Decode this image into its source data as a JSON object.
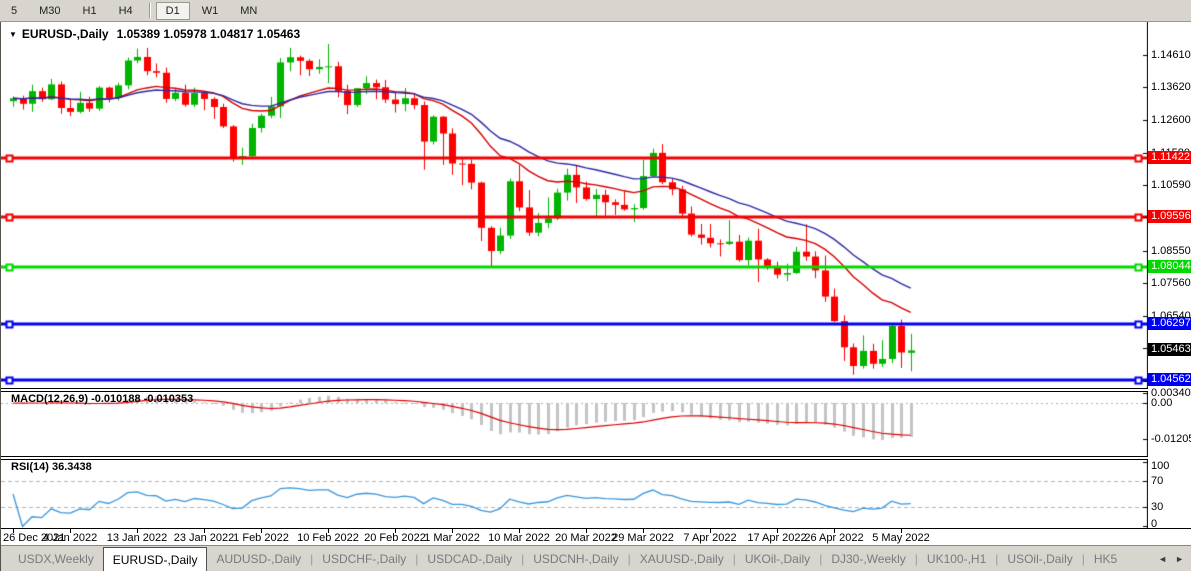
{
  "toolbar": {
    "timeframes": [
      {
        "label": "5",
        "active": false,
        "sep_before": false
      },
      {
        "label": "M30",
        "active": false,
        "sep_before": false
      },
      {
        "label": "H1",
        "active": false,
        "sep_before": false
      },
      {
        "label": "H4",
        "active": false,
        "sep_before": false
      },
      {
        "label": "D1",
        "active": true,
        "sep_before": true
      },
      {
        "label": "W1",
        "active": false,
        "sep_before": false
      },
      {
        "label": "MN",
        "active": false,
        "sep_before": false
      }
    ]
  },
  "chart": {
    "title_symbol": "EURUSD-,Daily",
    "title_ohlc": "1.05389 1.05978 1.04817 1.05463",
    "dropdown_icon": "▼"
  },
  "chart_data": {
    "type": "candlestick",
    "symbol": "EURUSD-,Daily",
    "price_axis_ticks": [
      "1.14610",
      "1.13620",
      "1.12600",
      "1.11580",
      "1.10590",
      "1.09600",
      "1.08550",
      "1.07560",
      "1.06540",
      "1.05550",
      "1.04530"
    ],
    "price_range": {
      "max": 1.1557,
      "min": 1.043
    },
    "hlines": [
      {
        "price": 1.11422,
        "label": "1.11422",
        "color": "#f40000"
      },
      {
        "price": 1.09596,
        "label": "1.09596",
        "color": "#f40000"
      },
      {
        "price": 1.08044,
        "label": "1.08044",
        "color": "#00d800"
      },
      {
        "price": 1.06297,
        "label": "1.06297",
        "color": "#0000f0"
      },
      {
        "price": 1.04562,
        "label": "1.04562",
        "color": "#0000f0"
      }
    ],
    "current_price": {
      "label": "1.05463",
      "value": 1.05463,
      "badge_color": "#000000"
    },
    "colors": {
      "candle_up": "#00b400",
      "candle_down": "#fd0000",
      "ma_fast": "#d40000",
      "ma_slow": "#2a2aa8",
      "macd_hist": "#c4c4c4",
      "macd_signal": "#e00000",
      "rsi_line": "#3a96dd",
      "grid_dash": "#b4b4b4"
    },
    "moving_averages": [
      {
        "period": 18,
        "color_key": "ma_fast"
      },
      {
        "period": 28,
        "color_key": "ma_slow"
      }
    ],
    "ohlc": [
      [
        1.1318,
        1.1333,
        1.1301,
        1.1327
      ],
      [
        1.1327,
        1.1335,
        1.1292,
        1.131
      ],
      [
        1.131,
        1.1369,
        1.1285,
        1.1349
      ],
      [
        1.1349,
        1.136,
        1.1316,
        1.1324
      ],
      [
        1.1324,
        1.1387,
        1.1321,
        1.137
      ],
      [
        1.137,
        1.1379,
        1.1279,
        1.1297
      ],
      [
        1.1297,
        1.1323,
        1.1272,
        1.1285
      ],
      [
        1.1285,
        1.1347,
        1.128,
        1.1313
      ],
      [
        1.1313,
        1.1332,
        1.1285,
        1.1295
      ],
      [
        1.1295,
        1.1365,
        1.1288,
        1.136
      ],
      [
        1.136,
        1.1363,
        1.1314,
        1.1328
      ],
      [
        1.1328,
        1.1375,
        1.132,
        1.1367
      ],
      [
        1.1367,
        1.1453,
        1.1355,
        1.1444
      ],
      [
        1.1444,
        1.1481,
        1.1435,
        1.1455
      ],
      [
        1.1455,
        1.1483,
        1.1398,
        1.1411
      ],
      [
        1.1411,
        1.1435,
        1.1392,
        1.1406
      ],
      [
        1.1406,
        1.1422,
        1.1313,
        1.1325
      ],
      [
        1.1325,
        1.1358,
        1.1318,
        1.1344
      ],
      [
        1.1344,
        1.1369,
        1.1301,
        1.1307
      ],
      [
        1.1307,
        1.136,
        1.13,
        1.1343
      ],
      [
        1.1343,
        1.1344,
        1.129,
        1.1325
      ],
      [
        1.1325,
        1.133,
        1.1263,
        1.13
      ],
      [
        1.13,
        1.131,
        1.1235,
        1.124
      ],
      [
        1.124,
        1.1244,
        1.1131,
        1.1144
      ],
      [
        1.1144,
        1.1174,
        1.1121,
        1.1148
      ],
      [
        1.1148,
        1.1248,
        1.114,
        1.1235
      ],
      [
        1.1235,
        1.1279,
        1.1221,
        1.1273
      ],
      [
        1.1273,
        1.1331,
        1.1265,
        1.1302
      ],
      [
        1.1302,
        1.1452,
        1.1266,
        1.1438
      ],
      [
        1.1438,
        1.1483,
        1.1411,
        1.1454
      ],
      [
        1.1454,
        1.1459,
        1.1398,
        1.1443
      ],
      [
        1.1443,
        1.1448,
        1.1396,
        1.1417
      ],
      [
        1.1417,
        1.1448,
        1.1403,
        1.1424
      ],
      [
        1.1424,
        1.1495,
        1.1374,
        1.1426
      ],
      [
        1.1426,
        1.144,
        1.133,
        1.135
      ],
      [
        1.135,
        1.1369,
        1.1278,
        1.1306
      ],
      [
        1.1306,
        1.1359,
        1.13,
        1.1358
      ],
      [
        1.1358,
        1.1395,
        1.134,
        1.1374
      ],
      [
        1.1374,
        1.1385,
        1.1324,
        1.1361
      ],
      [
        1.1361,
        1.1384,
        1.1312,
        1.1323
      ],
      [
        1.1323,
        1.1348,
        1.1283,
        1.1309
      ],
      [
        1.1309,
        1.1359,
        1.1287,
        1.1327
      ],
      [
        1.1327,
        1.1343,
        1.1293,
        1.1306
      ],
      [
        1.1306,
        1.1317,
        1.1106,
        1.1193
      ],
      [
        1.1193,
        1.1274,
        1.1184,
        1.127
      ],
      [
        1.127,
        1.1272,
        1.1121,
        1.1218
      ],
      [
        1.1218,
        1.1234,
        1.109,
        1.1125
      ],
      [
        1.1125,
        1.1145,
        1.1058,
        1.1124
      ],
      [
        1.1124,
        1.1138,
        1.1045,
        1.1066
      ],
      [
        1.1066,
        1.1069,
        1.0885,
        1.0926
      ],
      [
        1.0926,
        1.0931,
        1.0806,
        1.0854
      ],
      [
        1.0854,
        1.0926,
        1.0845,
        1.0902
      ],
      [
        1.0902,
        1.1078,
        1.0891,
        1.107
      ],
      [
        1.107,
        1.1121,
        1.0977,
        1.0989
      ],
      [
        1.0989,
        1.1043,
        1.0901,
        1.0911
      ],
      [
        1.0911,
        1.0972,
        1.09,
        1.0941
      ],
      [
        1.0941,
        1.102,
        1.0925,
        1.0955
      ],
      [
        1.0955,
        1.1047,
        1.095,
        1.1035
      ],
      [
        1.1035,
        1.1109,
        1.101,
        1.109
      ],
      [
        1.109,
        1.1119,
        1.1003,
        1.1051
      ],
      [
        1.1051,
        1.1069,
        1.101,
        1.1015
      ],
      [
        1.1015,
        1.1046,
        1.0962,
        1.1028
      ],
      [
        1.1028,
        1.1044,
        1.0963,
        1.1005
      ],
      [
        1.1005,
        1.1014,
        1.0966,
        1.0997
      ],
      [
        1.0997,
        1.1039,
        1.0979,
        1.0983
      ],
      [
        1.0983,
        1.0999,
        1.0944,
        1.0987
      ],
      [
        1.0987,
        1.1137,
        1.0982,
        1.1086
      ],
      [
        1.1086,
        1.1171,
        1.1084,
        1.1158
      ],
      [
        1.1158,
        1.1185,
        1.1061,
        1.1067
      ],
      [
        1.1067,
        1.1077,
        1.1027,
        1.1045
      ],
      [
        1.1045,
        1.1056,
        1.096,
        1.097
      ],
      [
        1.097,
        1.0992,
        1.0899,
        1.0905
      ],
      [
        1.0905,
        1.0938,
        1.0874,
        1.0895
      ],
      [
        1.0895,
        1.0938,
        1.0865,
        1.0878
      ],
      [
        1.0878,
        1.089,
        1.0837,
        1.0876
      ],
      [
        1.0876,
        1.095,
        1.0872,
        1.0883
      ],
      [
        1.0883,
        1.0904,
        1.0821,
        1.0826
      ],
      [
        1.0826,
        1.0896,
        1.0809,
        1.0886
      ],
      [
        1.0886,
        1.0923,
        1.0758,
        1.0828
      ],
      [
        1.0828,
        1.0832,
        1.0796,
        1.0808
      ],
      [
        1.0808,
        1.0821,
        1.0769,
        1.0781
      ],
      [
        1.0781,
        1.0815,
        1.0761,
        1.0786
      ],
      [
        1.0786,
        1.0867,
        1.0783,
        1.0852
      ],
      [
        1.0852,
        1.0937,
        1.0824,
        1.0837
      ],
      [
        1.0837,
        1.0853,
        1.077,
        1.0794
      ],
      [
        1.0794,
        1.084,
        1.0697,
        1.0713
      ],
      [
        1.0713,
        1.0738,
        1.0635,
        1.0637
      ],
      [
        1.0637,
        1.0655,
        1.0514,
        1.0556
      ],
      [
        1.0556,
        1.0568,
        1.0471,
        1.0498
      ],
      [
        1.0498,
        1.0593,
        1.049,
        1.0545
      ],
      [
        1.0545,
        1.0567,
        1.049,
        1.0505
      ],
      [
        1.0505,
        1.0578,
        1.0495,
        1.052
      ],
      [
        1.052,
        1.0632,
        1.0507,
        1.0622
      ],
      [
        1.0622,
        1.0642,
        1.0492,
        1.054
      ],
      [
        1.05389,
        1.05978,
        1.04817,
        1.05463
      ]
    ],
    "date_ticks": [
      {
        "label": "26 Dec 2021",
        "index": 0
      },
      {
        "label": "4 Jan 2022",
        "index": 6
      },
      {
        "label": "13 Jan 2022",
        "index": 13
      },
      {
        "label": "23 Jan 2022",
        "index": 20
      },
      {
        "label": "1 Feb 2022",
        "index": 26
      },
      {
        "label": "10 Feb 2022",
        "index": 33
      },
      {
        "label": "20 Feb 2022",
        "index": 40
      },
      {
        "label": "1 Mar 2022",
        "index": 46
      },
      {
        "label": "10 Mar 2022",
        "index": 53
      },
      {
        "label": "20 Mar 2022",
        "index": 60
      },
      {
        "label": "29 Mar 2022",
        "index": 66
      },
      {
        "label": "7 Apr 2022",
        "index": 73
      },
      {
        "label": "17 Apr 2022",
        "index": 80
      },
      {
        "label": "26 Apr 2022",
        "index": 86
      },
      {
        "label": "5 May 2022",
        "index": 93
      }
    ],
    "indicators": {
      "macd": {
        "label": "MACD(12,26,9)",
        "values_label": "-0.010188 -0.010353",
        "fast": 12,
        "slow": 26,
        "signal": 9,
        "axis_labels": [
          {
            "label": "0.003408",
            "value": 0.003408
          },
          {
            "label": "0.00",
            "value": 0
          },
          {
            "label": "-0.012058",
            "value": -0.012058
          }
        ]
      },
      "rsi": {
        "label": "RSI(14)",
        "value_label": "36.3438",
        "period": 14,
        "levels": [
          70,
          30
        ],
        "axis_labels": [
          {
            "label": "100",
            "value": 100
          },
          {
            "label": "70",
            "value": 70
          },
          {
            "label": "30",
            "value": 30
          },
          {
            "label": "0",
            "value": 0
          }
        ]
      }
    }
  },
  "tabs": {
    "items": [
      {
        "label": "USDX,Weekly",
        "active": false
      },
      {
        "label": "EURUSD-,Daily",
        "active": true
      },
      {
        "label": "AUDUSD-,Daily",
        "active": false
      },
      {
        "label": "USDCHF-,Daily",
        "active": false
      },
      {
        "label": "USDCAD-,Daily",
        "active": false
      },
      {
        "label": "USDCNH-,Daily",
        "active": false
      },
      {
        "label": "XAUUSD-,Daily",
        "active": false
      },
      {
        "label": "UKOil-,Daily",
        "active": false
      },
      {
        "label": "DJ30-,Weekly",
        "active": false
      },
      {
        "label": "UK100-,H1",
        "active": false
      },
      {
        "label": "USOil-,Daily",
        "active": false
      },
      {
        "label": "HK5",
        "active": false
      }
    ],
    "scroll_left_icon": "◄",
    "scroll_right_icon": "►"
  }
}
